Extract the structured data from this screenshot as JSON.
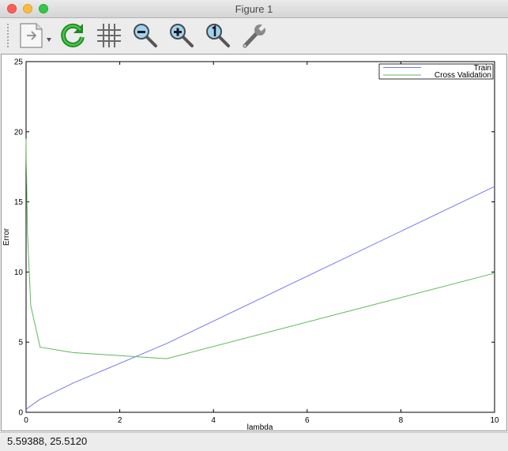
{
  "window": {
    "title": "Figure 1"
  },
  "toolbar": {
    "tools": [
      {
        "name": "save-tool",
        "icon": "document-save-icon"
      },
      {
        "name": "refresh-tool",
        "icon": "refresh-icon"
      },
      {
        "name": "grid-tool",
        "icon": "grid-icon"
      },
      {
        "name": "zoom-out-tool",
        "icon": "zoom-out-icon"
      },
      {
        "name": "zoom-in-tool",
        "icon": "zoom-in-icon"
      },
      {
        "name": "zoom-reset-tool",
        "icon": "zoom-one-icon"
      },
      {
        "name": "settings-tool",
        "icon": "wrench-icon"
      }
    ]
  },
  "status": {
    "coords": "5.59388,  25.5120"
  },
  "colors": {
    "train": "#7777ee",
    "cv": "#5cb85c"
  },
  "chart_data": {
    "type": "line",
    "xlabel": "lambda",
    "ylabel": "Error",
    "xlim": [
      0,
      10
    ],
    "ylim": [
      0,
      25
    ],
    "xticks": [
      0,
      2,
      4,
      6,
      8,
      10
    ],
    "yticks": [
      0,
      5,
      10,
      15,
      20,
      25
    ],
    "grid": false,
    "legend_position": "top-right",
    "x": [
      0,
      0.001,
      0.003,
      0.01,
      0.03,
      0.1,
      0.3,
      1,
      3,
      10
    ],
    "series": [
      {
        "name": "Train",
        "values": [
          0.17,
          0.17,
          0.17,
          0.22,
          0.28,
          0.46,
          0.93,
          2.08,
          4.9,
          16.1
        ]
      },
      {
        "name": "Cross Validation",
        "values": [
          19.5,
          19.0,
          18.0,
          17.0,
          12.8,
          7.6,
          4.64,
          4.26,
          3.82,
          9.92
        ]
      }
    ]
  }
}
